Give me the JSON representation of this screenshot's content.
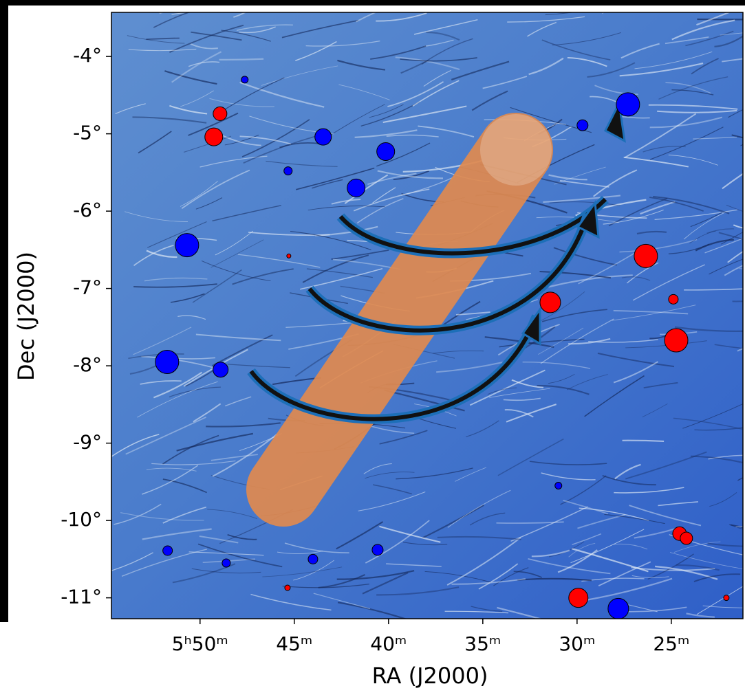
{
  "chart_data": {
    "type": "scatter",
    "xlabel": "RA (J2000)",
    "ylabel": "Dec (J2000)",
    "xlim": [
      54.7,
      21.2
    ],
    "ylim": [
      -11.27,
      -3.43
    ],
    "xticks": [
      {
        "value": 50,
        "label": "5ʰ50ᵐ"
      },
      {
        "value": 45,
        "label": "45ᵐ"
      },
      {
        "value": 40,
        "label": "40ᵐ"
      },
      {
        "value": 35,
        "label": "35ᵐ"
      },
      {
        "value": 30,
        "label": "30ᵐ"
      },
      {
        "value": 25,
        "label": "25ᵐ"
      }
    ],
    "yticks": [
      {
        "value": -4,
        "label": "-4°"
      },
      {
        "value": -5,
        "label": "-5°"
      },
      {
        "value": -6,
        "label": "-6°"
      },
      {
        "value": -7,
        "label": "-7°"
      },
      {
        "value": -8,
        "label": "-8°"
      },
      {
        "value": -9,
        "label": "-9°"
      },
      {
        "value": -10,
        "label": "-10°"
      },
      {
        "value": -11,
        "label": "-11°"
      }
    ],
    "series": [
      {
        "color": "#0000ff",
        "x": [
          47.63,
          43.47,
          45.33,
          40.15,
          41.72,
          50.69,
          51.75,
          48.91,
          29.71,
          27.3,
          30.99,
          51.72,
          48.61,
          44.01,
          40.58,
          27.81
        ],
        "values": [
          -4.3,
          -5.04,
          -5.48,
          -5.23,
          -5.7,
          -6.44,
          -7.95,
          -8.05,
          -4.89,
          -4.62,
          -9.55,
          -10.39,
          -10.55,
          -10.5,
          -10.38,
          -11.14
        ],
        "sizes": [
          5,
          12,
          6,
          13,
          13,
          17,
          17,
          11,
          8,
          17,
          5,
          7,
          6,
          7,
          8,
          15
        ]
      },
      {
        "color": "#ff0000",
        "x": [
          48.94,
          49.27,
          45.29,
          31.42,
          26.35,
          24.89,
          24.74,
          24.56,
          24.2,
          45.36,
          29.93,
          22.08
        ],
        "values": [
          -4.74,
          -5.04,
          -6.58,
          -7.18,
          -6.58,
          -7.14,
          -7.67,
          -10.17,
          -10.23,
          -10.87,
          -11.0,
          -11.0
        ],
        "sizes": [
          10,
          13,
          3,
          15,
          17,
          7,
          17,
          10,
          9,
          4,
          14,
          4
        ]
      }
    ]
  }
}
